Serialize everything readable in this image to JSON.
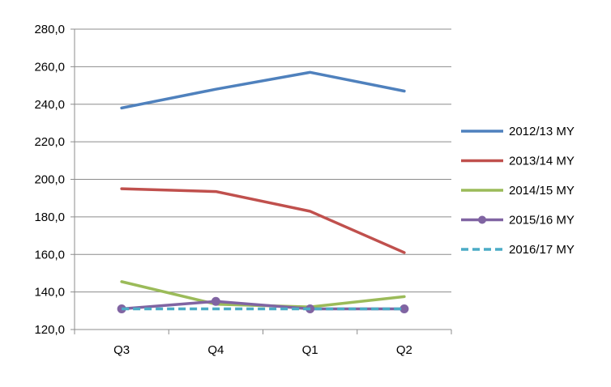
{
  "chart_data": {
    "type": "line",
    "categories": [
      "Q3",
      "Q4",
      "Q1",
      "Q2"
    ],
    "ylim": [
      120,
      280
    ],
    "yticks": [
      "120,0",
      "140,0",
      "160,0",
      "180,0",
      "200,0",
      "220,0",
      "240,0",
      "260,0",
      "280,0"
    ],
    "grid": true,
    "legend": "right",
    "series": [
      {
        "name": "2012/13 MY",
        "color": "#4F81BD",
        "dash": "solid",
        "marker": "none",
        "values": [
          238,
          248,
          257,
          247
        ]
      },
      {
        "name": "2013/14 MY",
        "color": "#C0504D",
        "dash": "solid",
        "marker": "none",
        "values": [
          195,
          193.5,
          183,
          161
        ]
      },
      {
        "name": "2014/15 MY",
        "color": "#9BBB59",
        "dash": "solid",
        "marker": "none",
        "values": [
          145.5,
          133.5,
          132,
          137.5
        ]
      },
      {
        "name": "2015/16 MY",
        "color": "#8064A2",
        "dash": "solid",
        "marker": "circle",
        "values": [
          131,
          135,
          131,
          131
        ]
      },
      {
        "name": "2016/17 MY",
        "color": "#4BACC6",
        "dash": "dashed",
        "marker": "none",
        "values": [
          131,
          131,
          131,
          131
        ]
      }
    ]
  }
}
